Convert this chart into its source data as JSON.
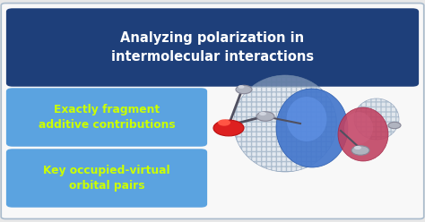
{
  "background_color": "#e8e8e8",
  "outer_border_color": "#aabbcc",
  "outer_bg_color": "#f8f8f8",
  "title_box_color": "#1e3f7a",
  "title_text": "Analyzing polarization in\nintermolecular interactions",
  "title_text_color": "#ffffff",
  "title_fontsize": 10.5,
  "bullet_box_color": "#5ba3e0",
  "bullet_text_color": "#ccff00",
  "bullet1_text": "Exactly fragment\nadditive contributions",
  "bullet2_text": "Key occupied-virtual\norbital pairs",
  "bullet_fontsize": 8.8,
  "fig_width": 4.74,
  "fig_height": 2.48,
  "dpi": 100
}
